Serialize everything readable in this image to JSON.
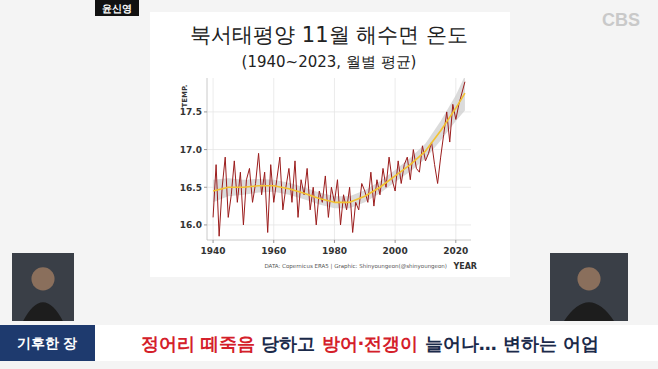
{
  "header": {
    "speaker": "윤신영",
    "channel": "CBS"
  },
  "chart_data": {
    "type": "line",
    "title": "북서태평양 11월 해수면 온도",
    "subtitle": "(1940~2023, 월별 평균)",
    "y_label": "TEMP.",
    "x_label": "YEAR",
    "source": "DATA: Copernicus ERA5 | Graphic: Shinyoungeon(@shinyoungeon)",
    "x": [
      1940,
      1941,
      1942,
      1943,
      1944,
      1945,
      1946,
      1947,
      1948,
      1949,
      1950,
      1951,
      1952,
      1953,
      1954,
      1955,
      1956,
      1957,
      1958,
      1959,
      1960,
      1961,
      1962,
      1963,
      1964,
      1965,
      1966,
      1967,
      1968,
      1969,
      1970,
      1971,
      1972,
      1973,
      1974,
      1975,
      1976,
      1977,
      1978,
      1979,
      1980,
      1981,
      1982,
      1983,
      1984,
      1985,
      1986,
      1987,
      1988,
      1989,
      1990,
      1991,
      1992,
      1993,
      1994,
      1995,
      1996,
      1997,
      1998,
      1999,
      2000,
      2001,
      2002,
      2003,
      2004,
      2005,
      2006,
      2007,
      2008,
      2009,
      2010,
      2011,
      2012,
      2013,
      2014,
      2015,
      2016,
      2017,
      2018,
      2019,
      2020,
      2021,
      2022,
      2023
    ],
    "xlim": [
      1938,
      2025
    ],
    "xticks": [
      1940,
      1960,
      1980,
      2000,
      2020
    ],
    "ylim": [
      15.8,
      17.95
    ],
    "yticks": [
      {
        "value": 16.0,
        "label": "16.0"
      },
      16.5,
      {
        "value": 17.0,
        "label": "17.0"
      },
      17.5
    ],
    "grid": true,
    "series": [
      {
        "type": "line",
        "color": "#9b1c1c",
        "values": [
          16.1,
          16.8,
          15.85,
          16.5,
          16.9,
          16.1,
          16.4,
          16.85,
          16.3,
          16.7,
          16.0,
          16.6,
          16.75,
          16.3,
          16.55,
          16.95,
          16.4,
          16.7,
          15.9,
          16.8,
          16.3,
          16.6,
          16.9,
          16.2,
          16.5,
          16.75,
          16.3,
          16.85,
          16.1,
          16.6,
          16.4,
          16.75,
          16.2,
          16.5,
          16.0,
          16.45,
          16.3,
          16.65,
          16.1,
          16.5,
          16.3,
          16.6,
          16.0,
          16.4,
          16.2,
          16.5,
          15.9,
          16.3,
          16.2,
          16.55,
          16.45,
          16.3,
          16.7,
          16.25,
          16.6,
          16.4,
          16.75,
          16.5,
          16.9,
          16.6,
          16.45,
          16.85,
          16.55,
          16.8,
          16.9,
          16.6,
          17.0,
          16.75,
          16.7,
          17.05,
          16.85,
          16.95,
          17.1,
          16.8,
          16.55,
          16.9,
          17.2,
          17.5,
          17.1,
          17.6,
          17.4,
          17.6,
          17.75,
          17.9
        ]
      },
      {
        "type": "line",
        "color": "#f2c230",
        "x": [
          1940,
          1945,
          1950,
          1955,
          1960,
          1965,
          1970,
          1975,
          1980,
          1985,
          1990,
          1995,
          2000,
          2005,
          2010,
          2015,
          2020,
          2023
        ],
        "values": [
          16.45,
          16.5,
          16.5,
          16.52,
          16.52,
          16.48,
          16.42,
          16.35,
          16.3,
          16.3,
          16.38,
          16.5,
          16.65,
          16.8,
          16.98,
          17.25,
          17.55,
          17.75
        ],
        "lower": [
          16.3,
          16.38,
          16.4,
          16.43,
          16.44,
          16.4,
          16.34,
          16.27,
          16.22,
          16.22,
          16.3,
          16.42,
          16.57,
          16.71,
          16.88,
          17.12,
          17.38,
          17.52
        ],
        "upper": [
          16.6,
          16.62,
          16.6,
          16.61,
          16.6,
          16.56,
          16.5,
          16.43,
          16.38,
          16.38,
          16.46,
          16.58,
          16.73,
          16.89,
          17.08,
          17.38,
          17.72,
          17.98
        ]
      }
    ]
  },
  "caption": {
    "label": "기후한 장",
    "headline": [
      "정어리 떼죽음",
      " 당하고 ",
      "방어·전갱이",
      " 늘어나… 변하는 어업"
    ]
  }
}
